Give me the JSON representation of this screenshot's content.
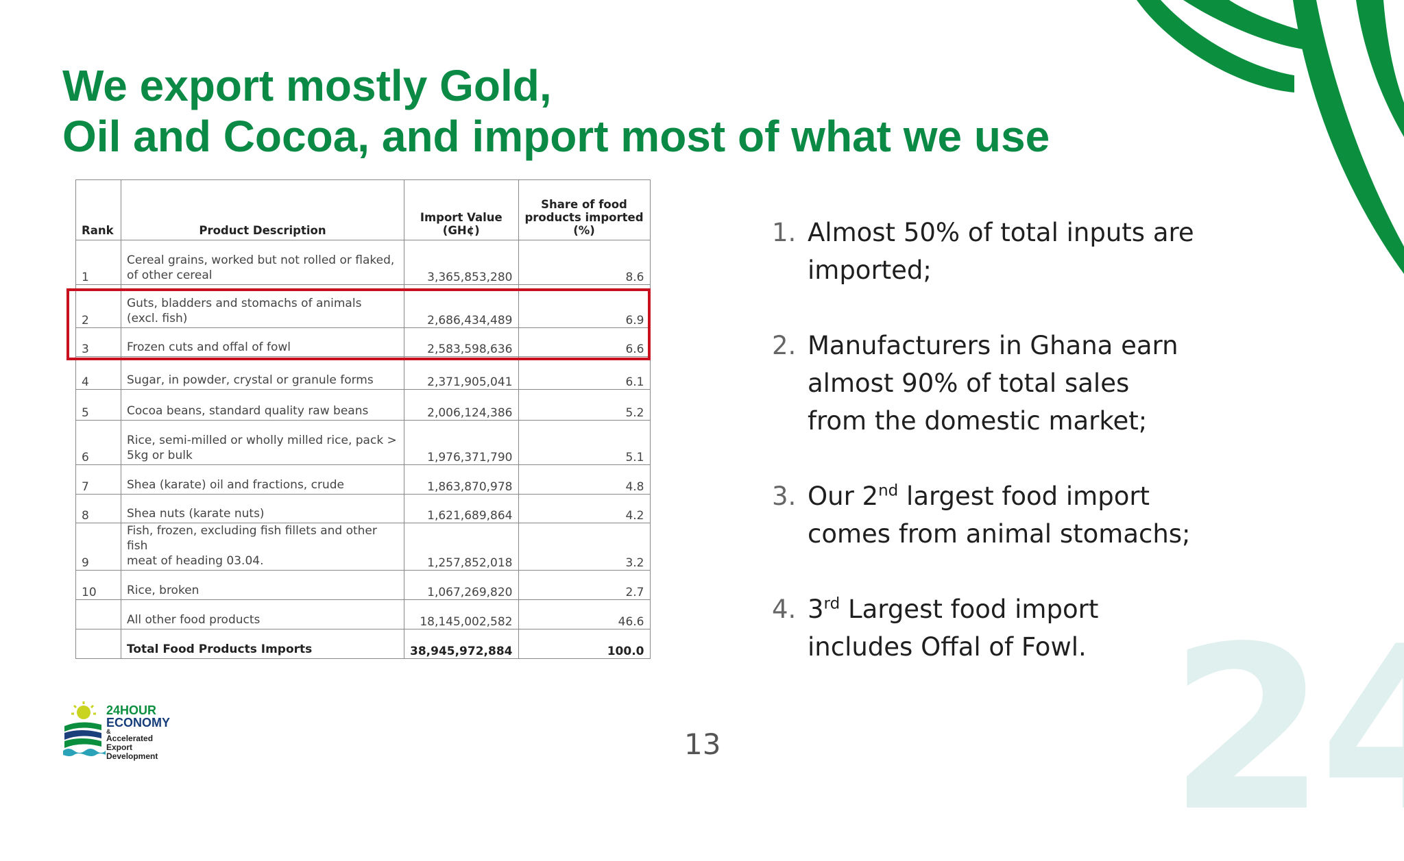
{
  "title": {
    "line1": "We export mostly Gold,",
    "line2": "Oil and Cocoa, and import most of what we use"
  },
  "table": {
    "headers": {
      "rank": "Rank",
      "description": "Product Description",
      "value_line1": "Import Value",
      "value_line2": "(GH¢)",
      "share_line1": "Share of food",
      "share_line2": "products imported",
      "share_line3": "(%)"
    },
    "rows": [
      {
        "rank": "1",
        "desc": [
          "Cereal grains, worked but not rolled or flaked,",
          "of other cereal"
        ],
        "value": "3,365,853,280",
        "share": "8.6"
      },
      {
        "rank": "2",
        "desc": [
          "Guts, bladders and stomachs of animals",
          "(excl. fish)"
        ],
        "value": "2,686,434,489",
        "share": "6.9"
      },
      {
        "rank": "3",
        "desc": [
          "Frozen cuts and offal of fowl"
        ],
        "value": "2,583,598,636",
        "share": "6.6"
      },
      {
        "rank": "4",
        "desc": [
          "Sugar, in powder, crystal or granule forms"
        ],
        "value": "2,371,905,041",
        "share": "6.1"
      },
      {
        "rank": "5",
        "desc": [
          "Cocoa beans, standard quality raw beans"
        ],
        "value": "2,006,124,386",
        "share": "5.2"
      },
      {
        "rank": "6",
        "desc": [
          "Rice, semi-milled or wholly milled rice, pack >",
          "5kg or bulk"
        ],
        "value": "1,976,371,790",
        "share": "5.1"
      },
      {
        "rank": "7",
        "desc": [
          "Shea (karate) oil and fractions, crude"
        ],
        "value": "1,863,870,978",
        "share": "4.8"
      },
      {
        "rank": "8",
        "desc": [
          "Shea nuts (karate nuts)"
        ],
        "value": "1,621,689,864",
        "share": "4.2"
      },
      {
        "rank": "9",
        "desc": [
          "Fish, frozen, excluding fish fillets and other fish",
          "meat of heading 03.04."
        ],
        "value": "1,257,852,018",
        "share": "3.2"
      },
      {
        "rank": "10",
        "desc": [
          "Rice, broken"
        ],
        "value": "1,067,269,820",
        "share": "2.7"
      },
      {
        "rank": "",
        "desc": [
          "All other food products"
        ],
        "value": "18,145,002,582",
        "share": "46.6"
      },
      {
        "rank": "",
        "desc": [
          "Total Food Products Imports"
        ],
        "value": "38,945,972,884",
        "share": "100.0"
      }
    ]
  },
  "points": [
    {
      "num": "1.",
      "lines": [
        "Almost 50% of total inputs are",
        "imported;"
      ]
    },
    {
      "num": "2.",
      "lines": [
        "Manufacturers in Ghana earn",
        "almost 90% of total sales",
        "from the domestic market;"
      ]
    },
    {
      "num": "3.",
      "pre": "Our 2",
      "sup": "nd",
      "post": " largest food import",
      "line2": "comes from animal stomachs;"
    },
    {
      "num": "4.",
      "pre": "3",
      "sup": "rd",
      "post": " Largest food import",
      "line2": "includes Offal of Fowl."
    }
  ],
  "page_number": "13",
  "watermark": "24",
  "logo": {
    "line1": "24HOUR",
    "line2": "ECONOMY",
    "line3": "&",
    "line4": "Accelerated",
    "line5": "Export",
    "line6": "Development"
  },
  "colors": {
    "title_green": "#0a8a45",
    "highlight_red": "#c8101e",
    "brand_green": "#0b8f3f",
    "watermark_tint": "#dff0ee"
  }
}
